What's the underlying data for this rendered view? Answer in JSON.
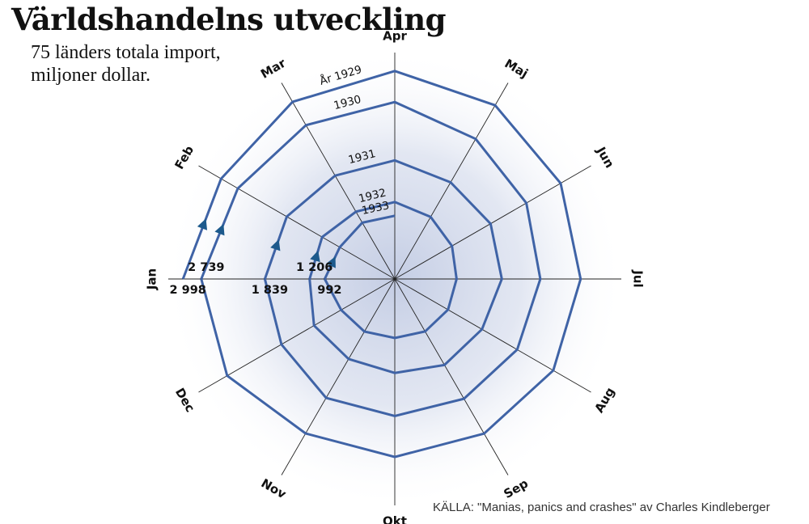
{
  "title": "Världshandelns utveckling",
  "subtitle_line1": "75 länders totala import,",
  "subtitle_line2": "miljoner dollar.",
  "source": "KÄLLA: \"Manias, panics and crashes\" av Charles Kindleberger",
  "colors": {
    "spiral": "#3f63a6",
    "arrow": "#1d5a8c",
    "glow": "#c4cde4",
    "axis": "#222222"
  },
  "chart_data": {
    "type": "radar",
    "months": [
      "Jan",
      "Feb",
      "Mar",
      "Apr",
      "Maj",
      "Jun",
      "Jul",
      "Aug",
      "Sep",
      "Okt",
      "Nov",
      "Dec"
    ],
    "series": [
      {
        "name": "År 1929",
        "values": [
          2998,
          2839,
          2895,
          2945,
          2840,
          2710,
          2630,
          2590,
          2528,
          2520,
          2525,
          2740
        ]
      },
      {
        "name": "1930",
        "values": [
          2739,
          2565,
          2515,
          2505,
          2290,
          2150,
          2060,
          2000,
          1958,
          1940,
          1945,
          1852
        ]
      },
      {
        "name": "1931",
        "values": [
          1839,
          1765,
          1690,
          1680,
          1580,
          1565,
          1515,
          1425,
          1405,
          1330,
          1308,
          1319
        ]
      },
      {
        "name": "1932",
        "values": [
          1206,
          1187,
          1100,
          1090,
          1015,
          935,
          875,
          870,
          858,
          836,
          860,
          877
        ]
      },
      {
        "name": "1933",
        "values": [
          992,
          899,
          920,
          895
        ]
      }
    ],
    "value_labels": [
      {
        "text": "2 998",
        "series": "År 1929",
        "month": "Jan"
      },
      {
        "text": "2 739",
        "series": "1930",
        "month": "Jan"
      },
      {
        "text": "1 839",
        "series": "1931",
        "month": "Jan"
      },
      {
        "text": "1 206",
        "series": "1932",
        "month": "Jan"
      },
      {
        "text": "992",
        "series": "1933",
        "month": "Jan"
      }
    ],
    "rmax": 3000,
    "direction": "clockwise",
    "start": "Jan at left (9 o'clock)",
    "grid": false,
    "legend": "none"
  }
}
